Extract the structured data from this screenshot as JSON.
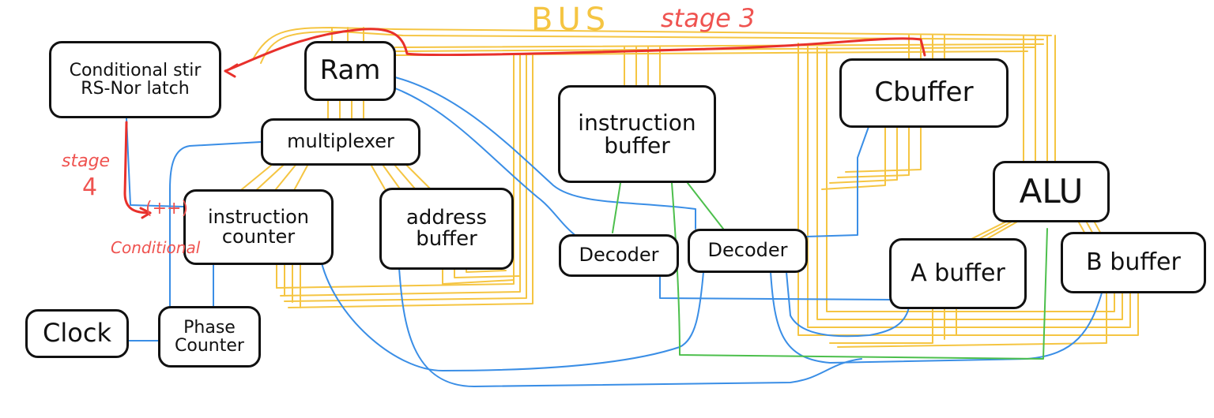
{
  "labels": {
    "bus": "BUS",
    "stage3": "stage 3",
    "stage4_line1": "stage",
    "stage4_line2": "4",
    "increment": "(++)",
    "conditional": "Conditional"
  },
  "components": {
    "latch": "Conditional stir RS-Nor latch",
    "ram": "Ram",
    "multiplexer": "multiplexer",
    "instruction_counter": "instruction counter",
    "address_buffer": "address buffer",
    "instruction_buffer": "instruction buffer",
    "decoder_1": "Decoder",
    "decoder_2": "Decoder",
    "c_buffer": "Cbuffer",
    "alu": "ALU",
    "a_buffer": "A buffer",
    "b_buffer": "B buffer",
    "clock": "Clock",
    "phase_counter": "Phase Counter"
  },
  "colors": {
    "bus_wire": "#f5c542",
    "control_wire": "#3a8ee6",
    "green_wire": "#4cbf4c",
    "stage_path": "#e8302b",
    "annotation_text": "#ef5350",
    "outline": "#111111"
  }
}
